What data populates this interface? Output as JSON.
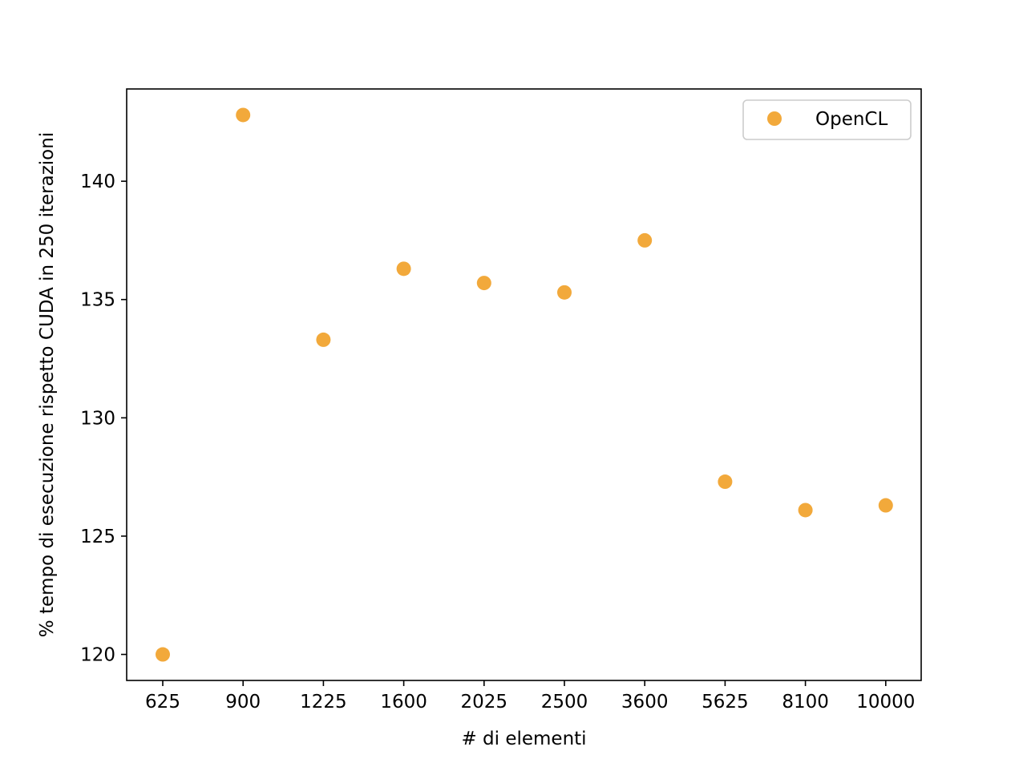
{
  "chart_data": {
    "type": "scatter",
    "title": "",
    "xlabel": "# di elementi",
    "ylabel": "% tempo di esecuzione rispetto CUDA in 250 iterazioni",
    "categories": [
      "625",
      "900",
      "1225",
      "1600",
      "2025",
      "2500",
      "3600",
      "5625",
      "8100",
      "10000"
    ],
    "series": [
      {
        "name": "OpenCL",
        "color": "#f2a93b",
        "values": [
          120.0,
          142.8,
          133.3,
          136.3,
          135.7,
          135.3,
          137.5,
          127.3,
          126.1,
          126.3
        ]
      }
    ],
    "yticks": [
      "120",
      "125",
      "130",
      "135",
      "140"
    ],
    "ylim": [
      118.9,
      143.9
    ],
    "grid": false,
    "legend_position": "upper right"
  }
}
